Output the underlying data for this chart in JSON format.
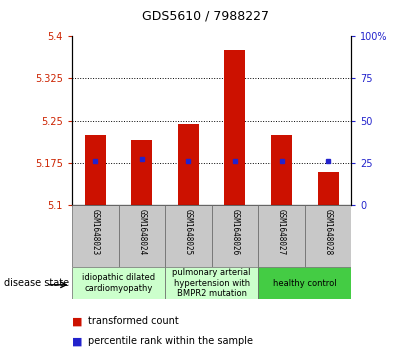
{
  "title": "GDS5610 / 7988227",
  "samples": [
    "GSM1648023",
    "GSM1648024",
    "GSM1648025",
    "GSM1648026",
    "GSM1648027",
    "GSM1648028"
  ],
  "bar_values": [
    5.225,
    5.215,
    5.245,
    5.375,
    5.225,
    5.158
  ],
  "bar_bottom": 5.1,
  "percentile_values": [
    5.178,
    5.182,
    5.178,
    5.178,
    5.179,
    5.178
  ],
  "percentile_rank_6": 5.181,
  "bar_color": "#cc1100",
  "percentile_color": "#2222cc",
  "ylim_left": [
    5.1,
    5.4
  ],
  "ylim_right": [
    0,
    100
  ],
  "yticks_left": [
    5.1,
    5.175,
    5.25,
    5.325,
    5.4
  ],
  "ytick_labels_left": [
    "5.1",
    "5.175",
    "5.25",
    "5.325",
    "5.4"
  ],
  "yticks_right": [
    0,
    25,
    50,
    75,
    100
  ],
  "ytick_labels_right": [
    "0",
    "25",
    "50",
    "75",
    "100%"
  ],
  "grid_values": [
    5.175,
    5.25,
    5.325
  ],
  "disease_groups": [
    {
      "label": "idiopathic dilated\ncardiomyopathy",
      "start": 0,
      "end": 2,
      "color": "#ccffcc"
    },
    {
      "label": "pulmonary arterial\nhypertension with\nBMPR2 mutation",
      "start": 2,
      "end": 4,
      "color": "#ccffcc"
    },
    {
      "label": "healthy control",
      "start": 4,
      "end": 6,
      "color": "#44cc44"
    }
  ],
  "disease_state_label": "disease state",
  "sample_bg_color": "#c8c8c8",
  "bar_width": 0.45,
  "title_fontsize": 9,
  "ytick_fontsize": 7,
  "sample_fontsize": 5.5,
  "disease_fontsize": 6,
  "legend_fontsize": 7
}
